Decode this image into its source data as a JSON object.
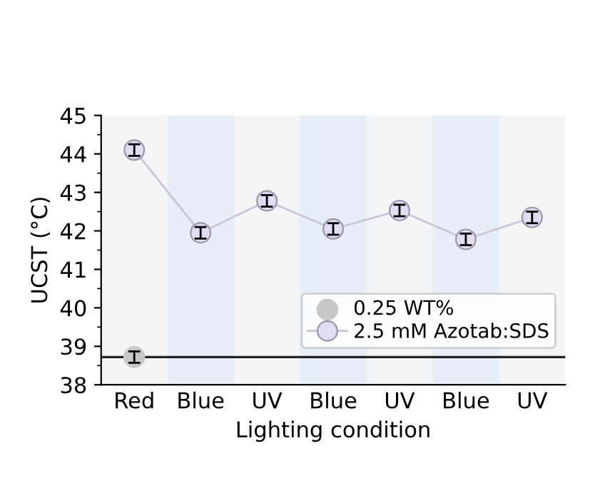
{
  "chart_data": {
    "type": "line",
    "xlabel": "Lighting condition",
    "ylabel": "UCST (°C)",
    "categories": [
      "Red",
      "Blue",
      "UV",
      "Blue",
      "UV",
      "Blue",
      "UV"
    ],
    "series": [
      {
        "name": "0.25 WT%",
        "type": "scatter",
        "color": "#c8c8c8",
        "values": [
          38.72,
          null,
          null,
          null,
          null,
          null,
          null
        ],
        "errors": [
          0.15,
          null,
          null,
          null,
          null,
          null,
          null
        ]
      },
      {
        "name": "2.5 mM Azotab:SDS",
        "color": "#e2ddf2",
        "values": [
          44.1,
          41.95,
          42.78,
          42.05,
          42.53,
          41.78,
          42.35
        ],
        "errors": [
          0.15,
          0.15,
          0.15,
          0.15,
          0.15,
          0.15,
          0.15
        ]
      }
    ],
    "ylim": [
      38,
      45
    ],
    "yticks": [
      38,
      39,
      40,
      41,
      42,
      43,
      44,
      45
    ],
    "ref_lines": [
      {
        "axis": "y",
        "value": 38.72,
        "color": "#222222"
      }
    ],
    "marker": "circle",
    "legend": "bottom right",
    "grid": false
  }
}
